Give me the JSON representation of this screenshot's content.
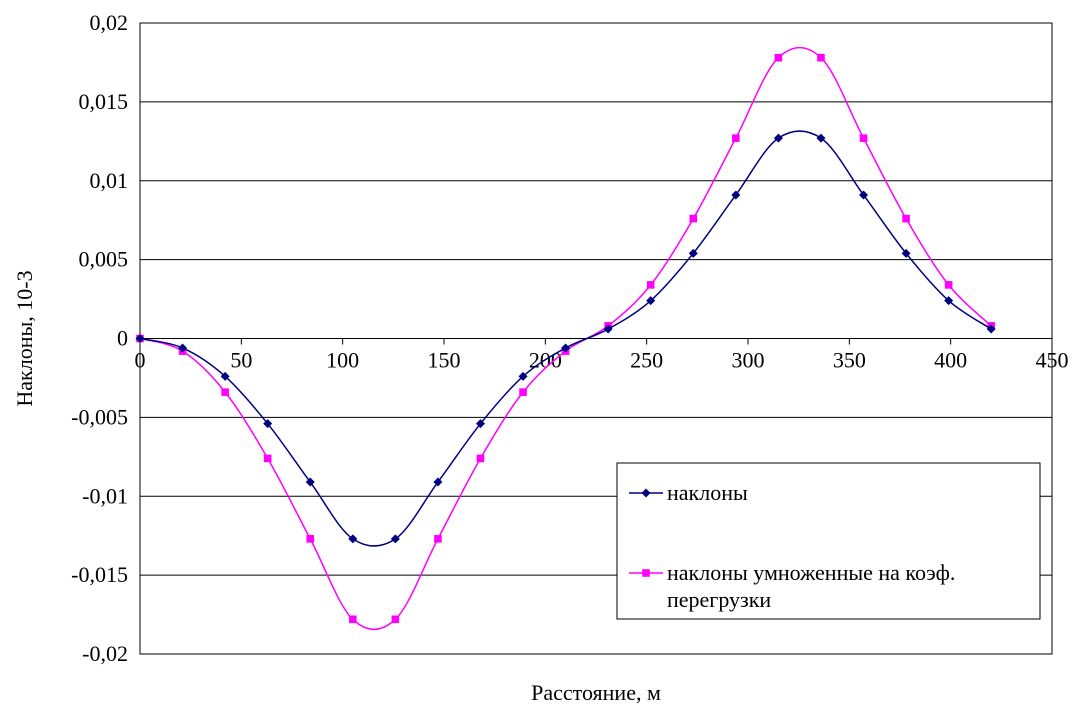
{
  "chart_data": {
    "type": "line",
    "title": "",
    "xlabel": "Расстояние, м",
    "ylabel": "Наклоны, 10-3",
    "xlim": [
      0,
      450
    ],
    "ylim": [
      -0.02,
      0.02
    ],
    "x_ticks": [
      "0",
      "50",
      "100",
      "150",
      "200",
      "250",
      "300",
      "350",
      "400",
      "450"
    ],
    "y_ticks": [
      "0,02",
      "0,015",
      "0,01",
      "0,005",
      "0",
      "-0,005",
      "-0,01",
      "-0,015",
      "-0,02"
    ],
    "grid": "horizontal",
    "smooth": true,
    "legend_position": "lower-right",
    "series": [
      {
        "name": "наклоны",
        "color": "#000080",
        "marker": "diamond",
        "x": [
          0,
          21,
          42,
          63,
          84,
          105,
          126,
          147,
          168,
          189,
          210,
          231,
          252,
          273,
          294,
          315,
          336,
          357,
          378,
          399,
          420
        ],
        "y": [
          0,
          -0.0006,
          -0.0024,
          -0.0054,
          -0.0091,
          -0.0127,
          -0.0127,
          -0.0091,
          -0.0054,
          -0.0024,
          -0.0006,
          0.0006,
          0.0024,
          0.0054,
          0.0091,
          0.0127,
          0.0127,
          0.0091,
          0.0054,
          0.0024,
          0.0006
        ]
      },
      {
        "name": "наклоны умноженные на коэф. перегрузки",
        "color": "#ff00ff",
        "marker": "square",
        "x": [
          0,
          21,
          42,
          63,
          84,
          105,
          126,
          147,
          168,
          189,
          210,
          231,
          252,
          273,
          294,
          315,
          336,
          357,
          378,
          399,
          420
        ],
        "y": [
          0,
          -0.0008,
          -0.0034,
          -0.0076,
          -0.0127,
          -0.0178,
          -0.0178,
          -0.0127,
          -0.0076,
          -0.0034,
          -0.0008,
          0.0008,
          0.0034,
          0.0076,
          0.0127,
          0.0178,
          0.0178,
          0.0127,
          0.0076,
          0.0034,
          0.0008
        ]
      }
    ]
  },
  "legend": {
    "items": [
      {
        "lines": [
          "наклоны"
        ]
      },
      {
        "lines": [
          "наклоны умноженные на коэф.",
          "перегрузки"
        ]
      }
    ]
  }
}
